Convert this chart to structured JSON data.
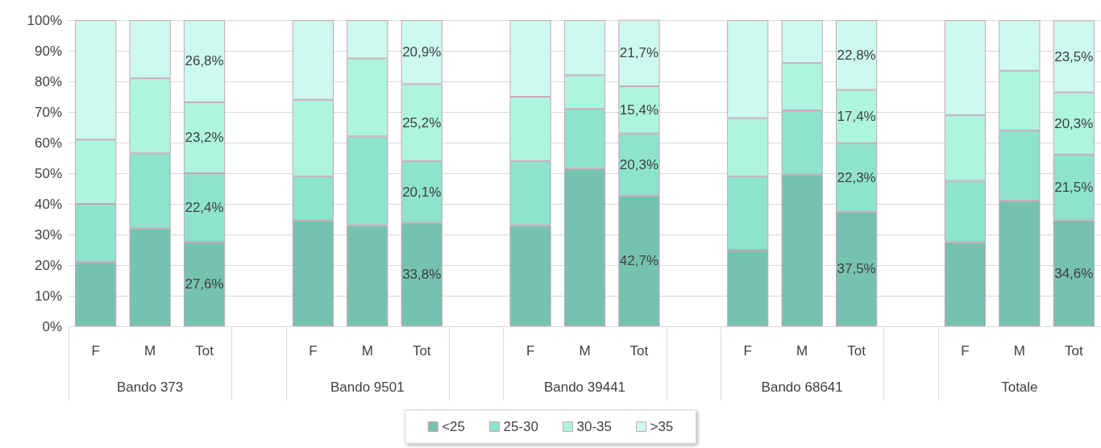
{
  "chart_data": {
    "type": "bar",
    "stacked": true,
    "categories": [
      "F",
      "M",
      "Tot",
      null,
      "F",
      "M",
      "Tot",
      null,
      "F",
      "M",
      "Tot",
      null,
      "F",
      "M",
      "Tot",
      null,
      "F",
      "M",
      "Tot"
    ],
    "series": [
      {
        "name": "<25",
        "color": "#76c2b1",
        "values": [
          21,
          32,
          27.6,
          null,
          34.5,
          33,
          33.8,
          null,
          33,
          51.5,
          42.7,
          null,
          25,
          49.5,
          37.5,
          null,
          27.5,
          41,
          34.6
        ],
        "value_labels": [
          null,
          null,
          "27,6%",
          null,
          null,
          null,
          "33,8%",
          null,
          null,
          null,
          "42,7%",
          null,
          null,
          null,
          "37,5%",
          null,
          null,
          null,
          "34,6%"
        ]
      },
      {
        "name": "25-30",
        "color": "#8de3cc",
        "values": [
          19,
          24.5,
          22.4,
          null,
          14.5,
          29,
          20.1,
          null,
          21,
          19.5,
          20.3,
          null,
          24,
          21,
          22.3,
          null,
          20,
          23,
          21.5
        ],
        "value_labels": [
          null,
          null,
          "22,4%",
          null,
          null,
          null,
          "20,1%",
          null,
          null,
          null,
          "20,3%",
          null,
          null,
          null,
          "22,3%",
          null,
          null,
          null,
          "21,5%"
        ]
      },
      {
        "name": "30-35",
        "color": "#aef5e0",
        "values": [
          21,
          24.5,
          23.2,
          null,
          25,
          25.5,
          25.2,
          null,
          21,
          11,
          15.4,
          null,
          19,
          15.5,
          17.4,
          null,
          21.5,
          19.5,
          20.3
        ],
        "value_labels": [
          null,
          null,
          "23,2%",
          null,
          null,
          null,
          "25,2%",
          null,
          null,
          null,
          "15,4%",
          null,
          null,
          null,
          "17,4%",
          null,
          null,
          null,
          "20,3%"
        ]
      },
      {
        "name": ">35",
        "color": "#ccfaee",
        "values": [
          39,
          19,
          26.8,
          null,
          26,
          12.5,
          20.9,
          null,
          25,
          18,
          21.7,
          null,
          32,
          14,
          22.8,
          null,
          31,
          16.5,
          23.5
        ],
        "value_labels": [
          null,
          null,
          "26,8%",
          null,
          null,
          null,
          "20,9%",
          null,
          null,
          null,
          "21,7%",
          null,
          null,
          null,
          "22,8%",
          null,
          null,
          null,
          "23,5%"
        ]
      }
    ],
    "ylim": [
      0,
      100
    ],
    "yticks": [
      {
        "value": 0,
        "label": "0%"
      },
      {
        "value": 10,
        "label": "10%"
      },
      {
        "value": 20,
        "label": "20%"
      },
      {
        "value": 30,
        "label": "30%"
      },
      {
        "value": 40,
        "label": "40%"
      },
      {
        "value": 50,
        "label": "50%"
      },
      {
        "value": 60,
        "label": "60%"
      },
      {
        "value": 70,
        "label": "70%"
      },
      {
        "value": 80,
        "label": "80%"
      },
      {
        "value": 90,
        "label": "90%"
      },
      {
        "value": 100,
        "label": "100%"
      }
    ],
    "grid": "y",
    "legend": "bottom",
    "annotations": [
      "Bando 373",
      "Bando 9501",
      "Bando 39441",
      "Bando 68641",
      "Totale"
    ]
  }
}
